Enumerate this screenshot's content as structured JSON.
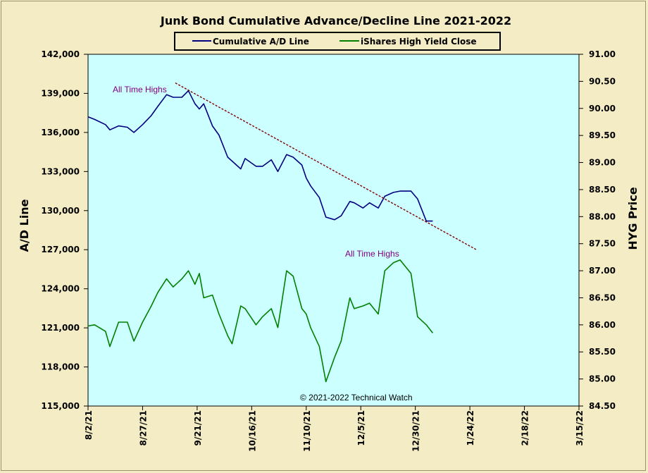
{
  "chart_data": {
    "type": "line",
    "title": "Junk Bond Cumulative Advance/Decline Line 2021-2022",
    "ylabel_left": "A/D Line",
    "ylabel_right": "HYG Price",
    "ylim_left": [
      115000,
      142000
    ],
    "ylim_right": [
      84.5,
      91.0
    ],
    "left_ticks": [
      "142,000",
      "139,000",
      "136,000",
      "133,000",
      "130,000",
      "127,000",
      "124,000",
      "121,000",
      "118,000",
      "115,000"
    ],
    "right_ticks": [
      "91.00",
      "90.50",
      "90.00",
      "89.50",
      "89.00",
      "88.50",
      "88.00",
      "87.50",
      "87.00",
      "86.50",
      "86.00",
      "85.50",
      "85.00",
      "84.50"
    ],
    "x_ticks": [
      "8/2/21",
      "8/27/21",
      "9/21/21",
      "10/16/21",
      "11/10/21",
      "12/5/21",
      "12/30/21",
      "1/24/22",
      "2/18/22",
      "3/15/22"
    ],
    "xlim": [
      "2021-08-02",
      "2022-03-15"
    ],
    "grid": false,
    "legend_position": "top",
    "colors": {
      "plot_background": "#ccffff",
      "page_background": "#f3ecc4",
      "ad_line": "#000080",
      "hyg_line": "#008000",
      "trendline": "#800000",
      "annotation": "#800080"
    },
    "series": [
      {
        "name": "Cumulative A/D Line",
        "axis": "left",
        "x": [
          "2021-08-02",
          "2021-08-05",
          "2021-08-10",
          "2021-08-12",
          "2021-08-16",
          "2021-08-20",
          "2021-08-23",
          "2021-08-27",
          "2021-08-31",
          "2021-09-03",
          "2021-09-07",
          "2021-09-10",
          "2021-09-14",
          "2021-09-17",
          "2021-09-20",
          "2021-09-22",
          "2021-09-24",
          "2021-09-28",
          "2021-10-01",
          "2021-10-05",
          "2021-10-07",
          "2021-10-11",
          "2021-10-13",
          "2021-10-18",
          "2021-10-21",
          "2021-10-25",
          "2021-10-28",
          "2021-11-01",
          "2021-11-04",
          "2021-11-08",
          "2021-11-10",
          "2021-11-12",
          "2021-11-16",
          "2021-11-19",
          "2021-11-23",
          "2021-11-26",
          "2021-11-30",
          "2021-12-02",
          "2021-12-06",
          "2021-12-09",
          "2021-12-13",
          "2021-12-16",
          "2021-12-20",
          "2021-12-23",
          "2021-12-28",
          "2021-12-31",
          "2022-01-04",
          "2022-01-07"
        ],
        "values": [
          137200,
          137000,
          136600,
          136200,
          136500,
          136400,
          136000,
          136600,
          137300,
          138000,
          138900,
          138700,
          138700,
          139200,
          138200,
          137800,
          138200,
          136500,
          135800,
          134100,
          133800,
          133200,
          134000,
          133400,
          133400,
          133900,
          133000,
          134300,
          134100,
          133500,
          132500,
          131900,
          131000,
          129500,
          129300,
          129600,
          130700,
          130600,
          130200,
          130600,
          130200,
          131100,
          131400,
          131500,
          131500,
          130900,
          129200,
          129200
        ]
      },
      {
        "name": "iShares High Yield Close",
        "axis": "right",
        "x": [
          "2021-08-02",
          "2021-08-05",
          "2021-08-10",
          "2021-08-12",
          "2021-08-16",
          "2021-08-20",
          "2021-08-23",
          "2021-08-27",
          "2021-08-31",
          "2021-09-03",
          "2021-09-07",
          "2021-09-10",
          "2021-09-14",
          "2021-09-17",
          "2021-09-20",
          "2021-09-22",
          "2021-09-24",
          "2021-09-28",
          "2021-10-01",
          "2021-10-05",
          "2021-10-07",
          "2021-10-11",
          "2021-10-13",
          "2021-10-18",
          "2021-10-21",
          "2021-10-25",
          "2021-10-28",
          "2021-11-01",
          "2021-11-04",
          "2021-11-08",
          "2021-11-10",
          "2021-11-12",
          "2021-11-16",
          "2021-11-19",
          "2021-11-23",
          "2021-11-26",
          "2021-11-30",
          "2021-12-02",
          "2021-12-06",
          "2021-12-09",
          "2021-12-13",
          "2021-12-16",
          "2021-12-20",
          "2021-12-23",
          "2021-12-28",
          "2021-12-31",
          "2022-01-04",
          "2022-01-07"
        ],
        "values": [
          85.98,
          86.0,
          85.88,
          85.6,
          86.05,
          86.05,
          85.7,
          86.05,
          86.35,
          86.6,
          86.85,
          86.7,
          86.85,
          87.0,
          86.75,
          86.95,
          86.5,
          86.55,
          86.2,
          85.8,
          85.65,
          86.35,
          86.3,
          86.0,
          86.15,
          86.3,
          85.95,
          87.0,
          86.9,
          86.3,
          86.2,
          85.95,
          85.6,
          84.95,
          85.4,
          85.7,
          86.5,
          86.3,
          86.35,
          86.4,
          86.2,
          87.0,
          87.15,
          87.2,
          86.95,
          86.15,
          86.0,
          85.85
        ]
      }
    ],
    "trendline": {
      "name": "trendline",
      "axis": "left",
      "x": [
        "2021-09-11",
        "2022-01-27"
      ],
      "values": [
        139800,
        127000
      ]
    },
    "annotations": [
      "All Time  Highs",
      "All Time  Highs"
    ],
    "copyright": "© 2021-2022  Technical  Watch"
  }
}
